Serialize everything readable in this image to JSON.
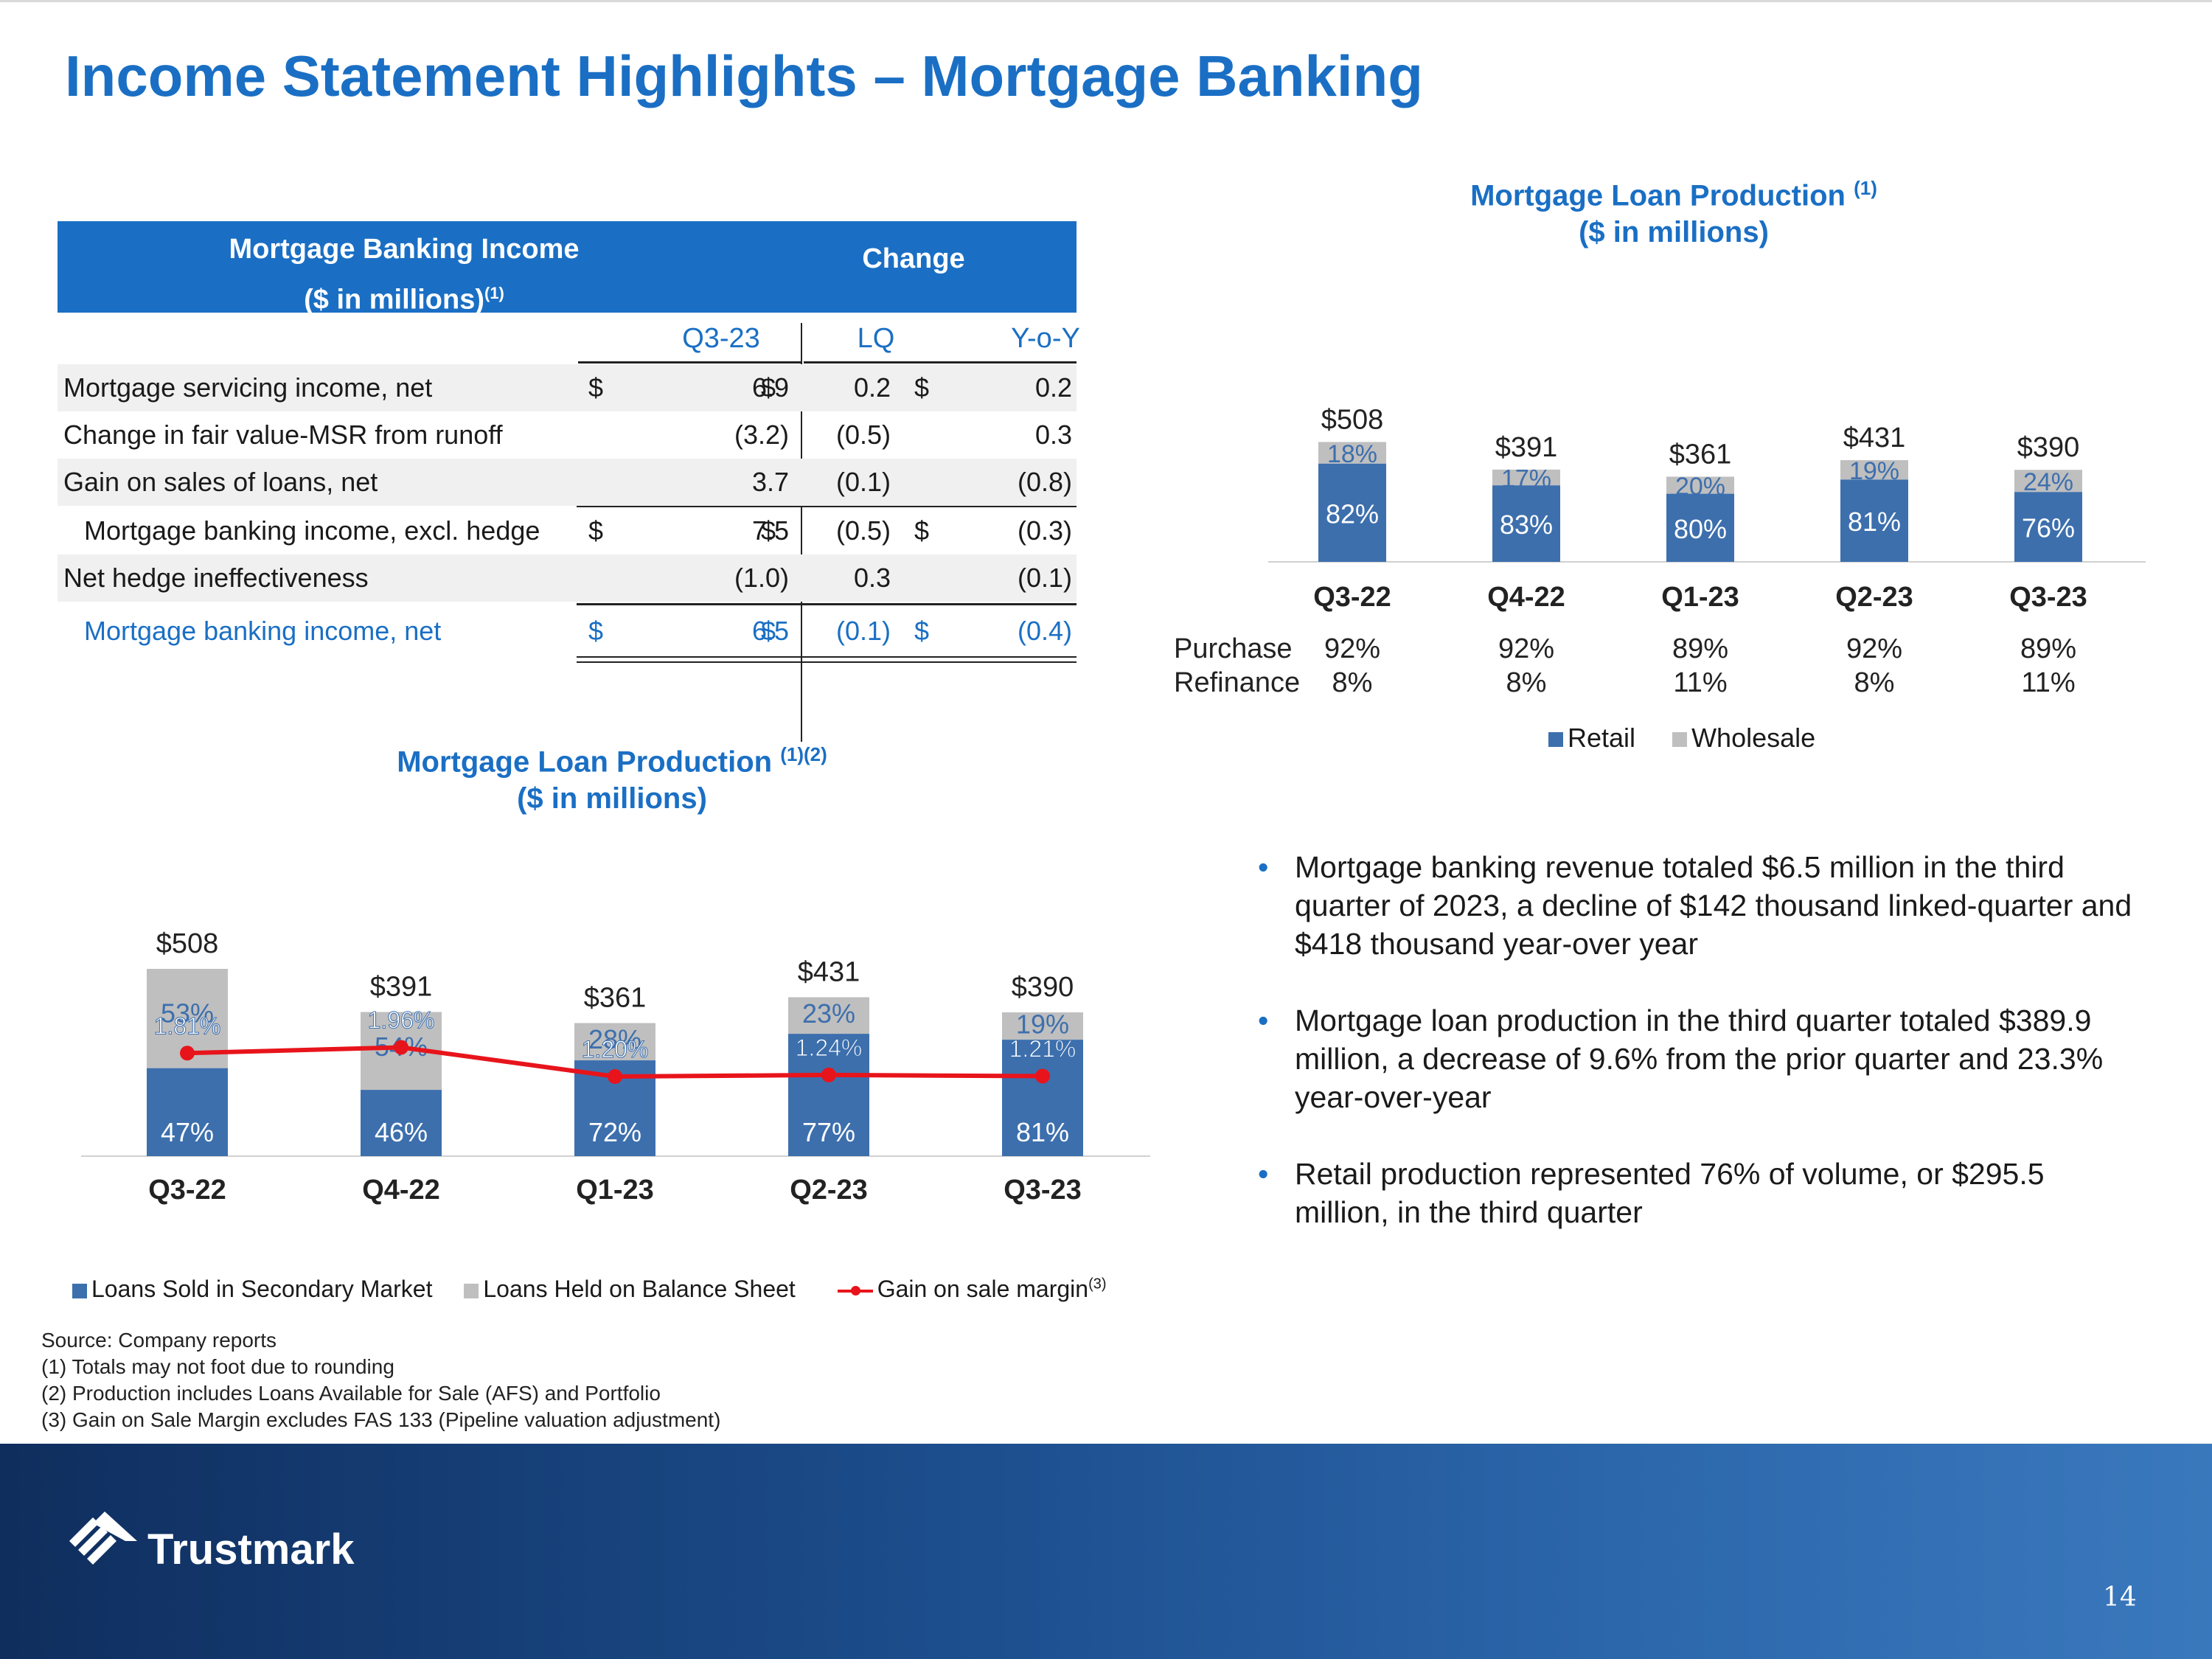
{
  "title": "Income Statement Highlights – Mortgage Banking",
  "income_table": {
    "header_title_line1": "Mortgage Banking Income",
    "header_title_line2": "($ in millions)",
    "header_title_sup": "(1)",
    "header_change": "Change",
    "col_q": "Q3-23",
    "col_lq": "LQ",
    "col_yoy": "Y-o-Y",
    "rows": [
      {
        "label": "Mortgage servicing income, net",
        "q_dollar": "$",
        "q": "6.9",
        "lq_dollar": "$",
        "lq": "0.2",
        "yoy_dollar": "$",
        "yoy": "0.2"
      },
      {
        "label": "Change in fair value-MSR from runoff",
        "q_dollar": "",
        "q": "(3.2)",
        "lq_dollar": "",
        "lq": "(0.5)",
        "yoy_dollar": "",
        "yoy": "0.3"
      },
      {
        "label": "Gain on sales of loans, net",
        "q_dollar": "",
        "q": "3.7",
        "lq_dollar": "",
        "lq": "(0.1)",
        "yoy_dollar": "",
        "yoy": "(0.8)"
      },
      {
        "label": "Mortgage banking income, excl. hedge",
        "q_dollar": "$",
        "q": "7.5",
        "lq_dollar": "$",
        "lq": "(0.5)",
        "yoy_dollar": "$",
        "yoy": "(0.3)"
      },
      {
        "label": "Net hedge ineffectiveness",
        "q_dollar": "",
        "q": "(1.0)",
        "lq_dollar": "",
        "lq": "0.3",
        "yoy_dollar": "",
        "yoy": "(0.1)"
      },
      {
        "label": "Mortgage banking income, net",
        "q_dollar": "$",
        "q": "6.5",
        "lq_dollar": "$",
        "lq": "(0.1)",
        "yoy_dollar": "$",
        "yoy": "(0.4)"
      }
    ]
  },
  "chart_data": [
    {
      "type": "bar",
      "title": "Mortgage Loan Production",
      "title_sup": "(1)",
      "subtitle": "($ in millions)",
      "categories": [
        "Q3-22",
        "Q4-22",
        "Q1-23",
        "Q2-23",
        "Q3-23"
      ],
      "totals": [
        "$508",
        "$391",
        "$361",
        "$431",
        "$390"
      ],
      "series": [
        {
          "name": "Retail",
          "values": [
            82,
            83,
            80,
            81,
            76
          ],
          "labels": [
            "82%",
            "83%",
            "80%",
            "81%",
            "76%"
          ],
          "color": "#3d6fad"
        },
        {
          "name": "Wholesale",
          "values": [
            18,
            17,
            20,
            19,
            24
          ],
          "labels": [
            "18%",
            "17%",
            "20%",
            "19%",
            "24%"
          ],
          "color": "#bfbfbf"
        }
      ],
      "table_rows": [
        {
          "label": "Purchase",
          "values": [
            "92%",
            "92%",
            "89%",
            "92%",
            "89%"
          ]
        },
        {
          "label": "Refinance",
          "values": [
            "8%",
            "8%",
            "11%",
            "8%",
            "11%"
          ]
        }
      ]
    },
    {
      "type": "bar",
      "title": "Mortgage Loan Production",
      "title_sup": "(1)(2)",
      "subtitle": "($ in millions)",
      "categories": [
        "Q3-22",
        "Q4-22",
        "Q1-23",
        "Q2-23",
        "Q3-23"
      ],
      "totals": [
        "$508",
        "$391",
        "$361",
        "$431",
        "$390"
      ],
      "total_values": [
        508,
        391,
        361,
        431,
        390
      ],
      "series": [
        {
          "name": "Loans Sold in Secondary Market",
          "values": [
            47,
            46,
            72,
            77,
            81
          ],
          "labels": [
            "47%",
            "46%",
            "72%",
            "77%",
            "81%"
          ],
          "color": "#3d6fad"
        },
        {
          "name": "Loans Held on Balance Sheet",
          "values": [
            53,
            54,
            28,
            23,
            19
          ],
          "labels": [
            "53%",
            "54%",
            "28%",
            "23%",
            "19%"
          ],
          "color": "#bfbfbf"
        }
      ],
      "line_series": {
        "name": "Gain on sale margin",
        "name_sup": "(3)",
        "values": [
          1.81,
          1.96,
          1.2,
          1.24,
          1.21
        ],
        "labels": [
          "1.81%",
          "1.96%",
          "1.20%",
          "1.24%",
          "1.21%"
        ],
        "color": "#e8141b"
      }
    }
  ],
  "bullets": [
    "Mortgage banking revenue totaled $6.5 million in the third quarter of 2023, a decline of $142 thousand linked-quarter and $418 thousand year-over year",
    "Mortgage loan production in the third quarter totaled $389.9 million, a decrease of 9.6% from the prior quarter and 23.3% year-over-year",
    "Retail production represented 76% of volume, or $295.5 million, in the third quarter"
  ],
  "footnotes": [
    "Source: Company reports",
    "(1) Totals may not foot due to rounding",
    "(2) Production includes Loans Available for Sale (AFS) and Portfolio",
    "(3) Gain on Sale Margin excludes FAS 133 (Pipeline valuation adjustment)"
  ],
  "footer": {
    "logo_text": "Trustmark",
    "page_number": "14"
  }
}
